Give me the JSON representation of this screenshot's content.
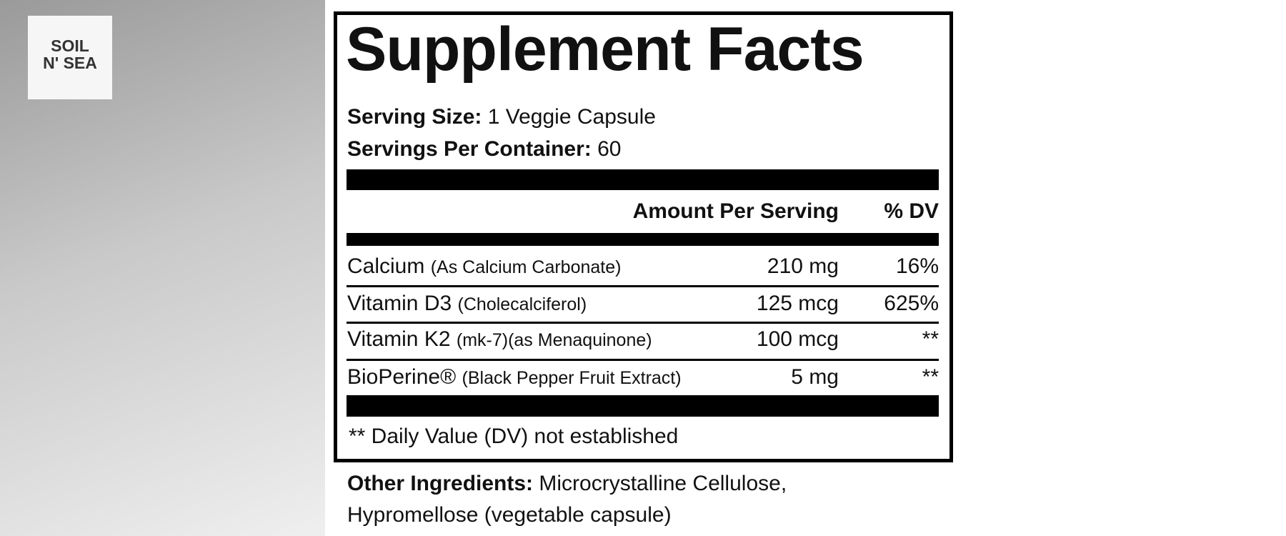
{
  "logo": {
    "line1": "SOIL",
    "line2": "N' SEA"
  },
  "facts": {
    "title": "Supplement Facts",
    "serving_size": {
      "label": "Serving Size:",
      "value": "1 Veggie Capsule"
    },
    "servings_per_container": {
      "label": "Servings Per Container:",
      "value": "60"
    },
    "header": {
      "amount": "Amount Per Serving",
      "dv": "% DV"
    },
    "rows": [
      {
        "name": "Calcium",
        "detail": "(As Calcium Carbonate)",
        "amount": "210 mg",
        "dv": "16%"
      },
      {
        "name": "Vitamin D3",
        "detail": "(Cholecalciferol)",
        "amount": "125 mcg",
        "dv": "625%"
      },
      {
        "name": "Vitamin K2",
        "detail": "(mk-7)(as Menaquinone)",
        "amount": "100 mcg",
        "dv": "**"
      },
      {
        "name": "BioPerine®",
        "detail": "(Black Pepper Fruit Extract)",
        "amount": "5 mg",
        "dv": "**"
      }
    ],
    "footnote": "** Daily Value (DV) not established"
  },
  "other_ingredients": {
    "label": "Other Ingredients:",
    "line1": "Microcrystalline Cellulose,",
    "line2": "Hypromellose (vegetable capsule)"
  }
}
